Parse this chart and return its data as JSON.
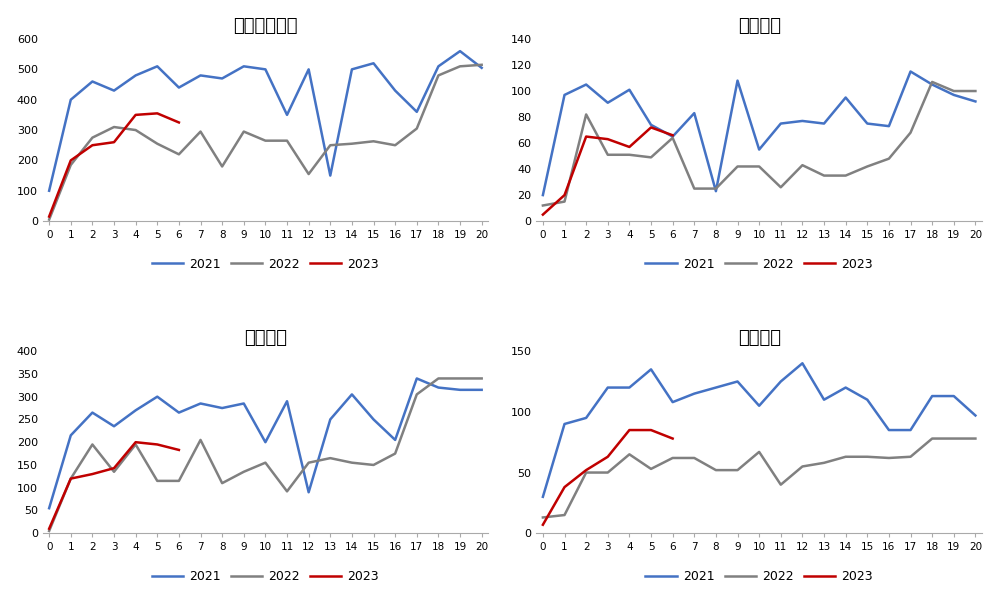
{
  "subplots": [
    {
      "title": "三十大中城市",
      "ylim": [
        0,
        600
      ],
      "yticks": [
        0,
        100,
        200,
        300,
        400,
        500,
        600
      ],
      "data_2021": [
        100,
        400,
        460,
        430,
        480,
        510,
        440,
        480,
        470,
        510,
        500,
        350,
        500,
        150,
        500,
        520,
        430,
        360,
        510,
        560,
        505
      ],
      "data_2022": [
        5,
        185,
        275,
        310,
        300,
        255,
        220,
        295,
        180,
        295,
        265,
        265,
        155,
        250,
        255,
        263,
        250,
        305,
        480,
        510,
        515
      ],
      "data_2023": [
        15,
        200,
        250,
        260,
        350,
        355,
        325,
        null,
        null,
        null,
        null,
        null,
        null,
        null,
        null,
        null,
        null,
        null,
        null,
        null,
        null
      ]
    },
    {
      "title": "一线城市",
      "ylim": [
        0,
        140
      ],
      "yticks": [
        0,
        20,
        40,
        60,
        80,
        100,
        120,
        140
      ],
      "data_2021": [
        20,
        97,
        105,
        91,
        101,
        74,
        65,
        83,
        23,
        108,
        55,
        75,
        77,
        75,
        95,
        75,
        73,
        115,
        105,
        97,
        92
      ],
      "data_2022": [
        12,
        15,
        82,
        51,
        51,
        49,
        64,
        25,
        25,
        42,
        42,
        26,
        43,
        35,
        35,
        42,
        48,
        68,
        107,
        100,
        100
      ],
      "data_2023": [
        5,
        20,
        65,
        63,
        57,
        72,
        66,
        null,
        null,
        null,
        null,
        null,
        null,
        null,
        null,
        null,
        null,
        null,
        null,
        null,
        null
      ]
    },
    {
      "title": "二线城市",
      "ylim": [
        0,
        400
      ],
      "yticks": [
        0,
        50,
        100,
        150,
        200,
        250,
        300,
        350,
        400
      ],
      "data_2021": [
        55,
        215,
        265,
        235,
        270,
        300,
        265,
        285,
        275,
        285,
        200,
        290,
        90,
        250,
        305,
        250,
        205,
        340,
        320,
        315,
        315
      ],
      "data_2022": [
        5,
        120,
        195,
        135,
        195,
        115,
        115,
        205,
        110,
        135,
        155,
        92,
        155,
        165,
        155,
        150,
        175,
        305,
        340,
        340,
        340
      ],
      "data_2023": [
        10,
        120,
        130,
        143,
        200,
        195,
        183,
        null,
        null,
        null,
        null,
        null,
        null,
        null,
        null,
        null,
        null,
        null,
        null,
        null,
        null
      ]
    },
    {
      "title": "三线城市",
      "ylim": [
        0,
        150
      ],
      "yticks": [
        0,
        50,
        100,
        150
      ],
      "data_2021": [
        30,
        90,
        95,
        120,
        120,
        135,
        108,
        115,
        120,
        125,
        105,
        125,
        140,
        110,
        120,
        110,
        85,
        85,
        113,
        113,
        97
      ],
      "data_2022": [
        13,
        15,
        50,
        50,
        65,
        53,
        62,
        62,
        52,
        52,
        67,
        40,
        55,
        58,
        63,
        63,
        62,
        63,
        78,
        78,
        78
      ],
      "data_2023": [
        7,
        38,
        52,
        63,
        85,
        85,
        78,
        null,
        null,
        null,
        null,
        null,
        null,
        null,
        null,
        null,
        null,
        null,
        null,
        null,
        null
      ]
    }
  ],
  "x": [
    0,
    1,
    2,
    3,
    4,
    5,
    6,
    7,
    8,
    9,
    10,
    11,
    12,
    13,
    14,
    15,
    16,
    17,
    18,
    19,
    20
  ],
  "color_2021": "#4472C4",
  "color_2022": "#808080",
  "color_2023": "#C00000",
  "legend_labels": [
    "2021",
    "2022",
    "2023"
  ],
  "linewidth": 1.8,
  "background_color": "#ffffff"
}
